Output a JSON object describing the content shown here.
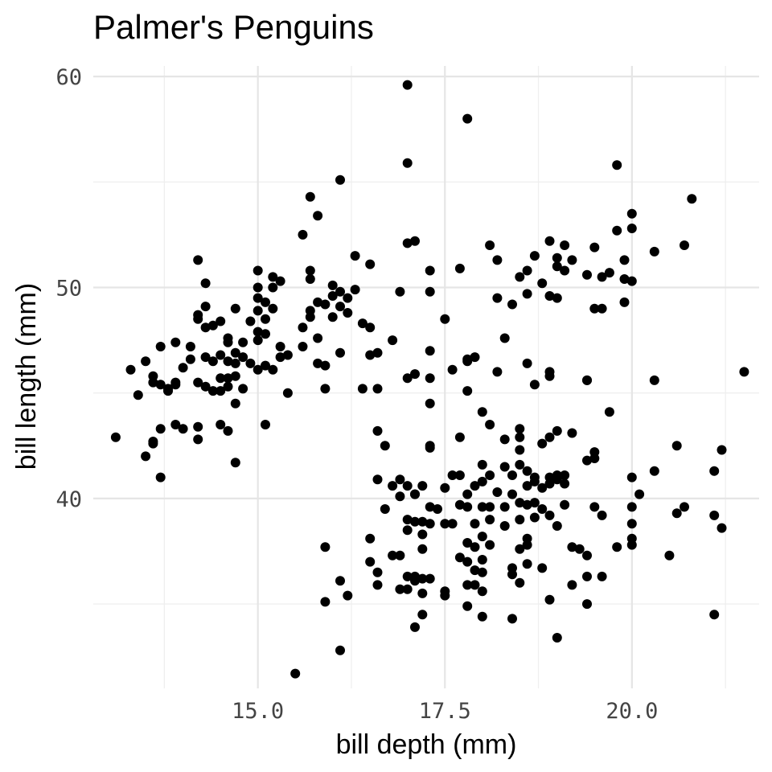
{
  "chart_data": {
    "type": "scatter",
    "title": "Palmer's Penguins",
    "xlabel": "bill depth (mm)",
    "ylabel": "bill length (mm)",
    "xlim": [
      12.8,
      21.7
    ],
    "ylim": [
      31.0,
      60.5
    ],
    "x_ticks": [
      15.0,
      17.5,
      20.0
    ],
    "x_tick_labels": [
      "15.0",
      "17.5",
      "20.0"
    ],
    "x_minor_ticks": [
      13.75,
      16.25,
      18.75,
      21.25
    ],
    "y_ticks": [
      40,
      50,
      60
    ],
    "y_tick_labels": [
      "40",
      "50",
      "60"
    ],
    "y_minor_ticks": [
      35,
      45,
      55
    ],
    "grid": true,
    "legend": "none",
    "point_color": "#000000",
    "points": [
      [
        17.0,
        59.6
      ],
      [
        17.8,
        58.0
      ],
      [
        17.0,
        55.9
      ],
      [
        19.8,
        55.8
      ],
      [
        16.1,
        55.1
      ],
      [
        15.7,
        54.3
      ],
      [
        20.8,
        54.2
      ],
      [
        15.8,
        53.4
      ],
      [
        20.0,
        53.5
      ],
      [
        20.0,
        52.8
      ],
      [
        19.8,
        52.7
      ],
      [
        15.6,
        52.5
      ],
      [
        17.0,
        52.1
      ],
      [
        17.1,
        52.2
      ],
      [
        18.9,
        52.2
      ],
      [
        18.1,
        52.0
      ],
      [
        19.1,
        52.0
      ],
      [
        19.5,
        51.9
      ],
      [
        20.3,
        51.7
      ],
      [
        20.7,
        52.0
      ],
      [
        16.3,
        51.5
      ],
      [
        14.2,
        51.3
      ],
      [
        16.5,
        51.1
      ],
      [
        18.2,
        51.3
      ],
      [
        18.7,
        51.5
      ],
      [
        19.0,
        51.4
      ],
      [
        19.2,
        51.3
      ],
      [
        19.9,
        51.3
      ],
      [
        15.0,
        50.8
      ],
      [
        15.7,
        50.8
      ],
      [
        17.3,
        50.8
      ],
      [
        17.7,
        50.9
      ],
      [
        18.5,
        50.5
      ],
      [
        18.6,
        50.8
      ],
      [
        19.0,
        51.0
      ],
      [
        19.1,
        50.8
      ],
      [
        19.4,
        50.6
      ],
      [
        19.6,
        50.5
      ],
      [
        19.7,
        50.7
      ],
      [
        15.2,
        50.5
      ],
      [
        15.3,
        50.3
      ],
      [
        15.7,
        50.4
      ],
      [
        16.0,
        50.1
      ],
      [
        15.0,
        50.0
      ],
      [
        15.2,
        50.0
      ],
      [
        14.3,
        50.2
      ],
      [
        18.8,
        50.2
      ],
      [
        19.9,
        50.4
      ],
      [
        20.0,
        50.3
      ],
      [
        16.1,
        49.8
      ],
      [
        16.3,
        49.9
      ],
      [
        16.0,
        49.6
      ],
      [
        16.2,
        49.5
      ],
      [
        16.9,
        49.8
      ],
      [
        17.3,
        49.8
      ],
      [
        18.2,
        49.5
      ],
      [
        18.4,
        49.2
      ],
      [
        18.6,
        49.7
      ],
      [
        18.9,
        49.6
      ],
      [
        19.0,
        49.5
      ],
      [
        15.0,
        49.5
      ],
      [
        15.1,
        49.3
      ],
      [
        15.8,
        49.3
      ],
      [
        15.9,
        49.2
      ],
      [
        15.7,
        48.9
      ],
      [
        16.1,
        49.1
      ],
      [
        16.2,
        48.8
      ],
      [
        14.3,
        49.1
      ],
      [
        14.7,
        49.0
      ],
      [
        15.0,
        48.9
      ],
      [
        15.2,
        49.0
      ],
      [
        19.6,
        49.0
      ],
      [
        19.5,
        49.0
      ],
      [
        19.9,
        49.3
      ],
      [
        17.5,
        48.5
      ],
      [
        16.4,
        48.3
      ],
      [
        16.0,
        48.6
      ],
      [
        15.7,
        48.6
      ],
      [
        14.2,
        48.7
      ],
      [
        14.4,
        48.2
      ],
      [
        14.5,
        48.4
      ],
      [
        14.9,
        48.4
      ],
      [
        15.1,
        48.5
      ],
      [
        15.6,
        48.1
      ],
      [
        16.5,
        48.1
      ],
      [
        14.2,
        48.5
      ],
      [
        14.3,
        48.1
      ],
      [
        15.0,
        47.9
      ],
      [
        15.1,
        47.8
      ],
      [
        15.0,
        47.5
      ],
      [
        14.6,
        47.6
      ],
      [
        15.8,
        47.6
      ],
      [
        16.8,
        47.5
      ],
      [
        18.3,
        47.6
      ],
      [
        13.9,
        47.4
      ],
      [
        14.1,
        47.2
      ],
      [
        13.7,
        47.2
      ],
      [
        14.6,
        47.4
      ],
      [
        14.8,
        47.4
      ],
      [
        15.3,
        47.2
      ],
      [
        15.6,
        47.2
      ],
      [
        15.4,
        46.8
      ],
      [
        15.3,
        46.7
      ],
      [
        14.7,
        46.9
      ],
      [
        14.5,
        46.8
      ],
      [
        14.3,
        46.7
      ],
      [
        14.1,
        46.6
      ],
      [
        14.0,
        46.2
      ],
      [
        14.4,
        46.5
      ],
      [
        14.6,
        46.5
      ],
      [
        14.7,
        46.4
      ],
      [
        14.8,
        46.7
      ],
      [
        14.9,
        46.4
      ],
      [
        15.1,
        46.3
      ],
      [
        15.2,
        46.1
      ],
      [
        15.9,
        46.3
      ],
      [
        15.8,
        46.4
      ],
      [
        16.1,
        46.9
      ],
      [
        16.5,
        46.8
      ],
      [
        16.6,
        46.9
      ],
      [
        17.3,
        47.0
      ],
      [
        17.8,
        46.6
      ],
      [
        17.9,
        46.7
      ],
      [
        18.6,
        46.4
      ],
      [
        19.4,
        45.6
      ],
      [
        20.3,
        45.6
      ],
      [
        21.5,
        46.0
      ],
      [
        13.3,
        46.1
      ],
      [
        13.5,
        46.5
      ],
      [
        13.6,
        45.5
      ],
      [
        13.7,
        45.4
      ],
      [
        13.8,
        45.1
      ],
      [
        13.9,
        45.5
      ],
      [
        14.2,
        45.5
      ],
      [
        14.3,
        45.3
      ],
      [
        14.5,
        45.7
      ],
      [
        14.6,
        45.7
      ],
      [
        14.4,
        45.1
      ],
      [
        14.6,
        45.3
      ],
      [
        14.8,
        45.2
      ],
      [
        14.5,
        45.1
      ],
      [
        14.7,
        45.8
      ],
      [
        15.0,
        46.1
      ],
      [
        15.4,
        45.0
      ],
      [
        15.9,
        45.2
      ],
      [
        16.4,
        45.2
      ],
      [
        16.6,
        45.2
      ],
      [
        17.0,
        45.7
      ],
      [
        17.1,
        45.9
      ],
      [
        17.3,
        45.7
      ],
      [
        17.6,
        46.1
      ],
      [
        17.8,
        45.1
      ],
      [
        17.8,
        46.5
      ],
      [
        18.2,
        46.0
      ],
      [
        18.7,
        45.4
      ],
      [
        18.9,
        45.8
      ],
      [
        19.4,
        45.6
      ],
      [
        18.9,
        46.0
      ],
      [
        13.4,
        44.9
      ],
      [
        13.8,
        45.2
      ],
      [
        13.6,
        45.8
      ],
      [
        13.9,
        45.4
      ],
      [
        14.7,
        44.5
      ],
      [
        17.3,
        44.5
      ],
      [
        18.0,
        44.1
      ],
      [
        19.7,
        44.1
      ],
      [
        13.7,
        43.3
      ],
      [
        13.9,
        43.5
      ],
      [
        14.0,
        43.3
      ],
      [
        14.2,
        43.4
      ],
      [
        14.5,
        43.5
      ],
      [
        14.6,
        43.2
      ],
      [
        15.1,
        43.5
      ],
      [
        16.6,
        43.2
      ],
      [
        18.1,
        43.5
      ],
      [
        18.3,
        42.8
      ],
      [
        18.5,
        43.3
      ],
      [
        18.5,
        42.9
      ],
      [
        19.0,
        43.2
      ],
      [
        19.2,
        43.1
      ],
      [
        13.6,
        42.6
      ],
      [
        13.6,
        42.7
      ],
      [
        14.2,
        42.8
      ],
      [
        13.1,
        42.9
      ],
      [
        16.7,
        42.5
      ],
      [
        17.3,
        42.5
      ],
      [
        17.3,
        42.4
      ],
      [
        17.7,
        42.9
      ],
      [
        18.5,
        42.3
      ],
      [
        18.8,
        42.6
      ],
      [
        18.9,
        42.9
      ],
      [
        19.5,
        42.2
      ],
      [
        19.5,
        41.9
      ],
      [
        19.4,
        41.8
      ],
      [
        20.6,
        42.5
      ],
      [
        21.2,
        42.3
      ],
      [
        13.5,
        42.0
      ],
      [
        13.7,
        41.0
      ],
      [
        14.7,
        41.7
      ],
      [
        16.6,
        40.9
      ],
      [
        16.9,
        40.9
      ],
      [
        17.6,
        41.1
      ],
      [
        17.7,
        41.1
      ],
      [
        18.0,
        41.6
      ],
      [
        18.1,
        41.1
      ],
      [
        18.3,
        41.5
      ],
      [
        18.4,
        41.1
      ],
      [
        18.5,
        41.6
      ],
      [
        18.6,
        41.3
      ],
      [
        18.7,
        41.0
      ],
      [
        18.9,
        41.0
      ],
      [
        19.0,
        41.1
      ],
      [
        19.1,
        41.1
      ],
      [
        20.0,
        41.0
      ],
      [
        20.3,
        41.3
      ],
      [
        21.1,
        41.3
      ],
      [
        16.8,
        40.6
      ],
      [
        17.0,
        40.6
      ],
      [
        17.1,
        40.2
      ],
      [
        17.2,
        40.6
      ],
      [
        17.5,
        40.5
      ],
      [
        17.8,
        40.2
      ],
      [
        17.9,
        40.6
      ],
      [
        18.0,
        40.8
      ],
      [
        18.2,
        40.3
      ],
      [
        18.4,
        40.2
      ],
      [
        18.6,
        40.6
      ],
      [
        18.7,
        40.8
      ],
      [
        18.8,
        40.5
      ],
      [
        18.9,
        40.7
      ],
      [
        19.0,
        40.9
      ],
      [
        19.1,
        40.7
      ],
      [
        20.1,
        40.2
      ],
      [
        16.9,
        40.1
      ],
      [
        17.1,
        40.2
      ],
      [
        17.3,
        39.6
      ],
      [
        17.4,
        39.5
      ],
      [
        17.7,
        39.7
      ],
      [
        17.8,
        39.6
      ],
      [
        18.0,
        39.6
      ],
      [
        18.1,
        39.6
      ],
      [
        18.3,
        39.6
      ],
      [
        18.5,
        39.8
      ],
      [
        18.6,
        39.7
      ],
      [
        18.7,
        39.8
      ],
      [
        18.8,
        39.5
      ],
      [
        19.1,
        39.7
      ],
      [
        19.5,
        39.6
      ],
      [
        20.0,
        39.6
      ],
      [
        20.6,
        39.3
      ],
      [
        20.7,
        39.6
      ],
      [
        21.1,
        39.2
      ],
      [
        16.7,
        39.5
      ],
      [
        17.0,
        39.0
      ],
      [
        17.1,
        38.9
      ],
      [
        17.2,
        38.9
      ],
      [
        17.3,
        38.8
      ],
      [
        17.5,
        38.8
      ],
      [
        17.6,
        38.8
      ],
      [
        17.9,
        38.8
      ],
      [
        18.1,
        39.0
      ],
      [
        18.3,
        38.7
      ],
      [
        18.5,
        39.0
      ],
      [
        18.7,
        39.1
      ],
      [
        18.9,
        39.2
      ],
      [
        19.6,
        39.2
      ],
      [
        20.0,
        38.8
      ],
      [
        21.2,
        38.6
      ],
      [
        17.0,
        38.5
      ],
      [
        17.2,
        38.3
      ],
      [
        18.0,
        38.2
      ],
      [
        18.6,
        38.1
      ],
      [
        19.0,
        38.7
      ],
      [
        20.0,
        38.1
      ],
      [
        16.5,
        38.1
      ],
      [
        16.9,
        37.3
      ],
      [
        17.2,
        37.6
      ],
      [
        17.8,
        37.9
      ],
      [
        17.9,
        37.7
      ],
      [
        18.1,
        37.8
      ],
      [
        18.5,
        37.6
      ],
      [
        18.6,
        37.8
      ],
      [
        19.2,
        37.7
      ],
      [
        19.3,
        37.6
      ],
      [
        19.8,
        37.7
      ],
      [
        20.0,
        37.8
      ],
      [
        20.5,
        37.3
      ],
      [
        15.9,
        37.7
      ],
      [
        16.8,
        37.3
      ],
      [
        16.5,
        37.0
      ],
      [
        17.7,
        37.2
      ],
      [
        17.8,
        37.0
      ],
      [
        18.0,
        37.1
      ],
      [
        18.4,
        36.7
      ],
      [
        18.6,
        36.9
      ],
      [
        18.8,
        36.7
      ],
      [
        19.4,
        37.3
      ],
      [
        16.6,
        36.5
      ],
      [
        17.0,
        36.3
      ],
      [
        17.1,
        36.3
      ],
      [
        17.1,
        36.1
      ],
      [
        17.2,
        36.2
      ],
      [
        17.3,
        36.2
      ],
      [
        17.8,
        35.9
      ],
      [
        17.9,
        35.9
      ],
      [
        17.9,
        36.6
      ],
      [
        18.0,
        36.5
      ],
      [
        18.4,
        36.4
      ],
      [
        18.5,
        36.0
      ],
      [
        19.2,
        35.9
      ],
      [
        19.4,
        36.3
      ],
      [
        19.6,
        36.3
      ],
      [
        16.1,
        36.1
      ],
      [
        16.6,
        35.9
      ],
      [
        16.9,
        35.7
      ],
      [
        17.0,
        35.7
      ],
      [
        17.2,
        35.5
      ],
      [
        17.5,
        35.6
      ],
      [
        17.5,
        35.4
      ],
      [
        18.0,
        35.6
      ],
      [
        16.2,
        35.4
      ],
      [
        15.9,
        35.1
      ],
      [
        17.8,
        34.9
      ],
      [
        18.9,
        35.2
      ],
      [
        19.4,
        35.0
      ],
      [
        17.2,
        34.5
      ],
      [
        18.0,
        34.4
      ],
      [
        18.4,
        34.3
      ],
      [
        17.1,
        33.9
      ],
      [
        21.1,
        34.5
      ],
      [
        19.0,
        33.4
      ],
      [
        16.1,
        32.8
      ],
      [
        15.5,
        31.7
      ]
    ]
  }
}
